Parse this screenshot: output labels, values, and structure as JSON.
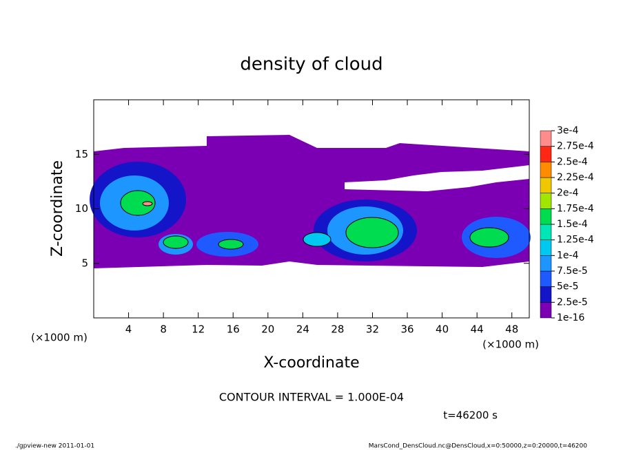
{
  "chart_data": {
    "type": "contour",
    "title": "density of cloud",
    "xlabel": "X-coordinate",
    "ylabel": "Z-coordinate",
    "x_unit": "(×1000 m)",
    "y_unit": "(×1000 m)",
    "xlim": [
      0,
      50
    ],
    "xticks": [
      4,
      8,
      12,
      16,
      20,
      24,
      28,
      32,
      36,
      40,
      44,
      48
    ],
    "ylim": [
      0,
      20
    ],
    "yticks": [
      5,
      10,
      15
    ],
    "colorbar": {
      "levels": [
        {
          "value": 1e-16,
          "label": "1e-16"
        },
        {
          "value": 2.5e-05,
          "label": "2.5e-5"
        },
        {
          "value": 5e-05,
          "label": "5e-5"
        },
        {
          "value": 7.5e-05,
          "label": "7.5e-5"
        },
        {
          "value": 0.0001,
          "label": "1e-4"
        },
        {
          "value": 0.000125,
          "label": "1.25e-4"
        },
        {
          "value": 0.00015,
          "label": "1.5e-4"
        },
        {
          "value": 0.000175,
          "label": "1.75e-4"
        },
        {
          "value": 0.0002,
          "label": "2e-4"
        },
        {
          "value": 0.000225,
          "label": "2.25e-4"
        },
        {
          "value": 0.00025,
          "label": "2.5e-4"
        },
        {
          "value": 0.000275,
          "label": "2.75e-4"
        },
        {
          "value": 0.0003,
          "label": "3e-4"
        }
      ],
      "colors": [
        "#7b00b4",
        "#1414c8",
        "#1e5aff",
        "#1e96ff",
        "#00c8f0",
        "#00e6b4",
        "#00dc50",
        "#a0e600",
        "#f0c800",
        "#ff8c00",
        "#ff2814",
        "#ff8c8c"
      ]
    },
    "contour_interval": "CONTOUR INTERVAL = 1.000E-04",
    "time": "t=46200 s",
    "footer": {
      "left": "./gpview-new  2011-01-01",
      "right": "MarsCond_DensCloud.nc@DensCloud,x=0:50000,z=0:20000,t=46200"
    }
  }
}
